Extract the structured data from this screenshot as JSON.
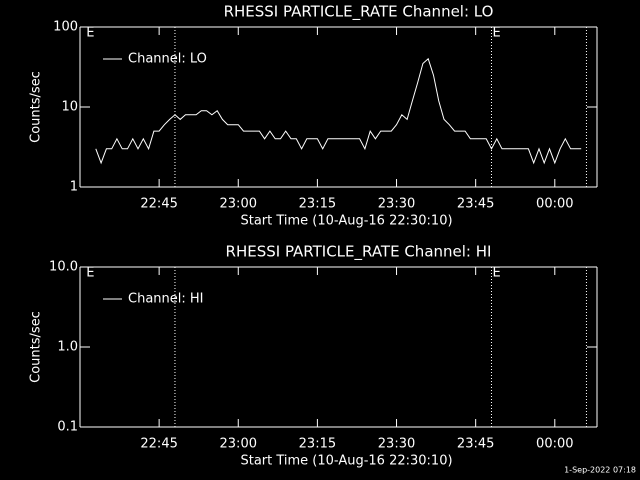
{
  "chart_data": [
    {
      "type": "line",
      "title": "RHESSI PARTICLE_RATE Channel: LO",
      "xlabel": "Start Time (10-Aug-16 22:30:10)",
      "ylabel": "Counts/sec",
      "x": [
        "22:33",
        "22:34",
        "22:35",
        "22:36",
        "22:37",
        "22:38",
        "22:39",
        "22:40",
        "22:41",
        "22:42",
        "22:43",
        "22:44",
        "22:45",
        "22:46",
        "22:47",
        "22:48",
        "22:49",
        "22:50",
        "22:51",
        "22:52",
        "22:53",
        "22:54",
        "22:55",
        "22:56",
        "22:57",
        "22:58",
        "22:59",
        "23:00",
        "23:01",
        "23:02",
        "23:03",
        "23:04",
        "23:05",
        "23:06",
        "23:07",
        "23:08",
        "23:09",
        "23:10",
        "23:11",
        "23:12",
        "23:13",
        "23:14",
        "23:15",
        "23:16",
        "23:17",
        "23:18",
        "23:19",
        "23:20",
        "23:21",
        "23:22",
        "23:23",
        "23:24",
        "23:25",
        "23:26",
        "23:27",
        "23:28",
        "23:29",
        "23:30",
        "23:31",
        "23:32",
        "23:33",
        "23:34",
        "23:35",
        "23:36",
        "23:37",
        "23:38",
        "23:39",
        "23:40",
        "23:41",
        "23:42",
        "23:43",
        "23:44",
        "23:45",
        "23:46",
        "23:47",
        "23:48",
        "23:49",
        "23:50",
        "23:51",
        "23:52",
        "23:53",
        "23:54",
        "23:55",
        "23:56",
        "23:57",
        "23:58",
        "23:59",
        "00:00",
        "00:01",
        "00:02",
        "00:03",
        "00:04",
        "00:05"
      ],
      "series": [
        {
          "name": "Channel: LO",
          "color": "#ffffff",
          "values": [
            3,
            2,
            3,
            3,
            4,
            3,
            3,
            4,
            3,
            4,
            3,
            5,
            5,
            6,
            7,
            8,
            7,
            8,
            8,
            8,
            9,
            9,
            8,
            9,
            7,
            6,
            6,
            6,
            5,
            5,
            5,
            5,
            4,
            5,
            4,
            4,
            5,
            4,
            4,
            3,
            4,
            4,
            4,
            3,
            4,
            4,
            4,
            4,
            4,
            4,
            4,
            3,
            5,
            4,
            5,
            5,
            5,
            6,
            8,
            7,
            12,
            20,
            35,
            40,
            25,
            12,
            7,
            6,
            5,
            5,
            5,
            4,
            4,
            4,
            4,
            3,
            4,
            3,
            3,
            3,
            3,
            3,
            3,
            2,
            3,
            2,
            3,
            2,
            3,
            4,
            3,
            3,
            3
          ]
        }
      ],
      "xlim": [
        "22:30",
        "00:08"
      ],
      "xticks": [
        "22:45",
        "23:00",
        "23:15",
        "23:30",
        "23:45",
        "00:00"
      ],
      "ylim": [
        1,
        100
      ],
      "yticks": [
        1,
        10,
        100
      ],
      "log_y": true,
      "vlines": [
        "22:48",
        "23:48",
        "00:06"
      ],
      "markers": [
        {
          "x": "22:31",
          "label": "E"
        },
        {
          "x": "23:48",
          "label": "E"
        }
      ]
    },
    {
      "type": "line",
      "title": "RHESSI PARTICLE_RATE Channel: HI",
      "xlabel": "Start Time (10-Aug-16 22:30:10)",
      "ylabel": "Counts/sec",
      "x": [],
      "series": [
        {
          "name": "Channel: HI",
          "color": "#ffffff",
          "values": []
        }
      ],
      "xlim": [
        "22:30",
        "00:08"
      ],
      "xticks": [
        "22:45",
        "23:00",
        "23:15",
        "23:30",
        "23:45",
        "00:00"
      ],
      "ylim": [
        0.1,
        10
      ],
      "yticks": [
        0.1,
        {
          "value": 1,
          "label": "1.0"
        },
        {
          "value": 10,
          "label": "10.0"
        }
      ],
      "log_y": true,
      "vlines": [
        "22:48",
        "23:48",
        "00:06"
      ],
      "markers": [
        {
          "x": "22:31",
          "label": "E"
        },
        {
          "x": "23:48",
          "label": "E"
        }
      ]
    }
  ],
  "footer": "1-Sep-2022 07:18"
}
